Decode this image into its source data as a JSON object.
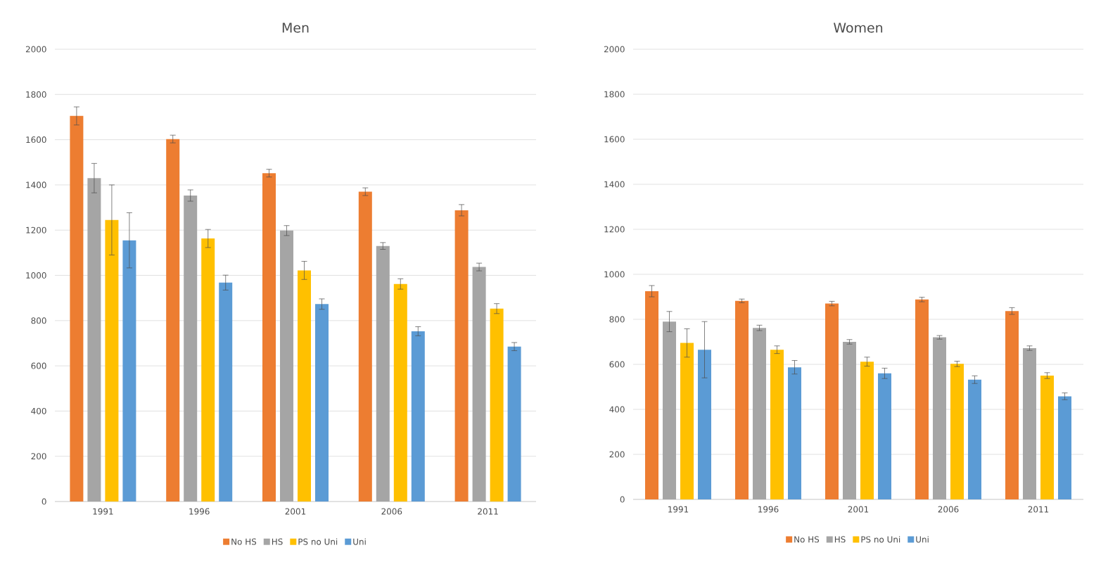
{
  "chart_data": [
    {
      "type": "bar",
      "title": "Men",
      "categories": [
        "1991",
        "1996",
        "2001",
        "2006",
        "2011"
      ],
      "ylim": [
        0,
        2000
      ],
      "yticks": [
        0,
        200,
        400,
        600,
        800,
        1000,
        1200,
        1400,
        1600,
        1800,
        2000
      ],
      "grid": "y",
      "legend": "bottom",
      "series": [
        {
          "name": "No HS",
          "color": "#ed7d31",
          "values": [
            1705,
            1603,
            1452,
            1370,
            1288
          ],
          "errors": [
            40,
            17,
            17,
            17,
            25
          ]
        },
        {
          "name": "HS",
          "color": "#a5a5a5",
          "values": [
            1430,
            1353,
            1198,
            1130,
            1037
          ],
          "errors": [
            65,
            25,
            22,
            15,
            17
          ]
        },
        {
          "name": "PS no Uni",
          "color": "#ffc000",
          "values": [
            1245,
            1163,
            1022,
            962,
            853
          ],
          "errors": [
            155,
            40,
            40,
            23,
            22
          ]
        },
        {
          "name": "Uni",
          "color": "#5b9bd5",
          "values": [
            1155,
            968,
            873,
            753,
            685
          ],
          "errors": [
            122,
            33,
            23,
            20,
            18
          ]
        }
      ]
    },
    {
      "type": "bar",
      "title": "Women",
      "categories": [
        "1991",
        "1996",
        "2001",
        "2006",
        "2011"
      ],
      "ylim": [
        0,
        2000
      ],
      "yticks": [
        0,
        200,
        400,
        600,
        800,
        1000,
        1200,
        1400,
        1600,
        1800,
        2000
      ],
      "grid": "y",
      "legend": "bottom",
      "series": [
        {
          "name": "No HS",
          "color": "#ed7d31",
          "values": [
            925,
            882,
            870,
            888,
            837
          ],
          "errors": [
            25,
            8,
            10,
            10,
            15
          ]
        },
        {
          "name": "HS",
          "color": "#a5a5a5",
          "values": [
            790,
            762,
            700,
            720,
            672
          ],
          "errors": [
            45,
            12,
            10,
            8,
            10
          ]
        },
        {
          "name": "PS no Uni",
          "color": "#ffc000",
          "values": [
            695,
            665,
            612,
            602,
            550
          ],
          "errors": [
            63,
            17,
            20,
            12,
            13
          ]
        },
        {
          "name": "Uni",
          "color": "#5b9bd5",
          "values": [
            665,
            587,
            560,
            532,
            458
          ],
          "errors": [
            125,
            30,
            23,
            17,
            15
          ]
        }
      ]
    }
  ]
}
